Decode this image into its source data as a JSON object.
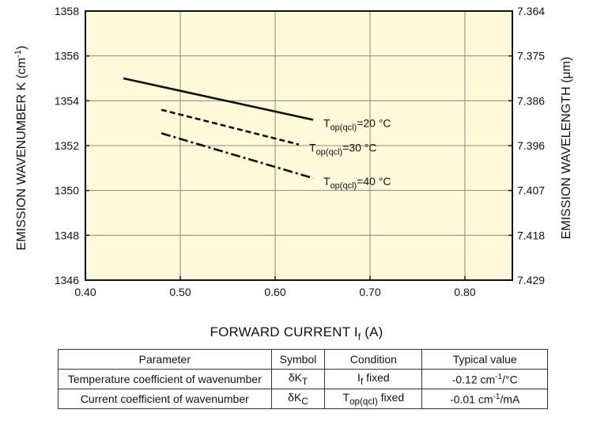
{
  "chart_data": {
    "type": "line",
    "title": "",
    "xlabel": "FORWARD CURRENT I",
    "xlabel_sub": "f",
    "xlabel_unit": "(A)",
    "ylabel": "EMISSION WAVENUMBER K (cm",
    "ylabel_sup": "-1",
    "ylabel_close": ")",
    "y2label": "EMISSION WAVELENGTH (μm)",
    "xlim": [
      0.4,
      0.85
    ],
    "ylim": [
      1346,
      1358
    ],
    "xticks": [
      "0.40",
      "0.50",
      "0.60",
      "0.70",
      "0.80"
    ],
    "yticks": [
      "1346",
      "1348",
      "1350",
      "1352",
      "1354",
      "1356",
      "1358"
    ],
    "y2ticks": [
      "7.429",
      "7.418",
      "7.407",
      "7.396",
      "7.386",
      "7.375",
      "7.364"
    ],
    "grid": true,
    "background": "#fdf9d9",
    "series": [
      {
        "label_main": "T",
        "label_sub": "op(qcl)",
        "label_rest": "=20 °C",
        "style": "solid",
        "x": [
          0.44,
          0.64
        ],
        "y": [
          1355.0,
          1353.15
        ]
      },
      {
        "label_main": "T",
        "label_sub": "op(qcl)",
        "label_rest": "=30 °C",
        "style": "dashed",
        "x": [
          0.48,
          0.625
        ],
        "y": [
          1353.6,
          1352.05
        ]
      },
      {
        "label_main": "T",
        "label_sub": "op(qcl)",
        "label_rest": "=40 °C",
        "style": "dashdot",
        "x": [
          0.48,
          0.64
        ],
        "y": [
          1352.55,
          1350.55
        ]
      }
    ]
  },
  "table": {
    "headers": [
      "Parameter",
      "Symbol",
      "Condition",
      "Typical value"
    ],
    "rows": [
      {
        "parameter": "Temperature coefficient of wavenumber",
        "symbol_main": "δK",
        "symbol_sub": "T",
        "condition_main": "I",
        "condition_sub": "f",
        "condition_rest": " fixed",
        "value_main": "-0.12 cm",
        "value_sup": "-1",
        "value_rest": "/°C"
      },
      {
        "parameter": "Current coefficient of wavenumber",
        "symbol_main": "δK",
        "symbol_sub": "C",
        "condition_main": "T",
        "condition_sub": "op(qcl)",
        "condition_rest": " fixed",
        "value_main": "-0.01 cm",
        "value_sup": "-1",
        "value_rest": "/mA"
      }
    ]
  }
}
